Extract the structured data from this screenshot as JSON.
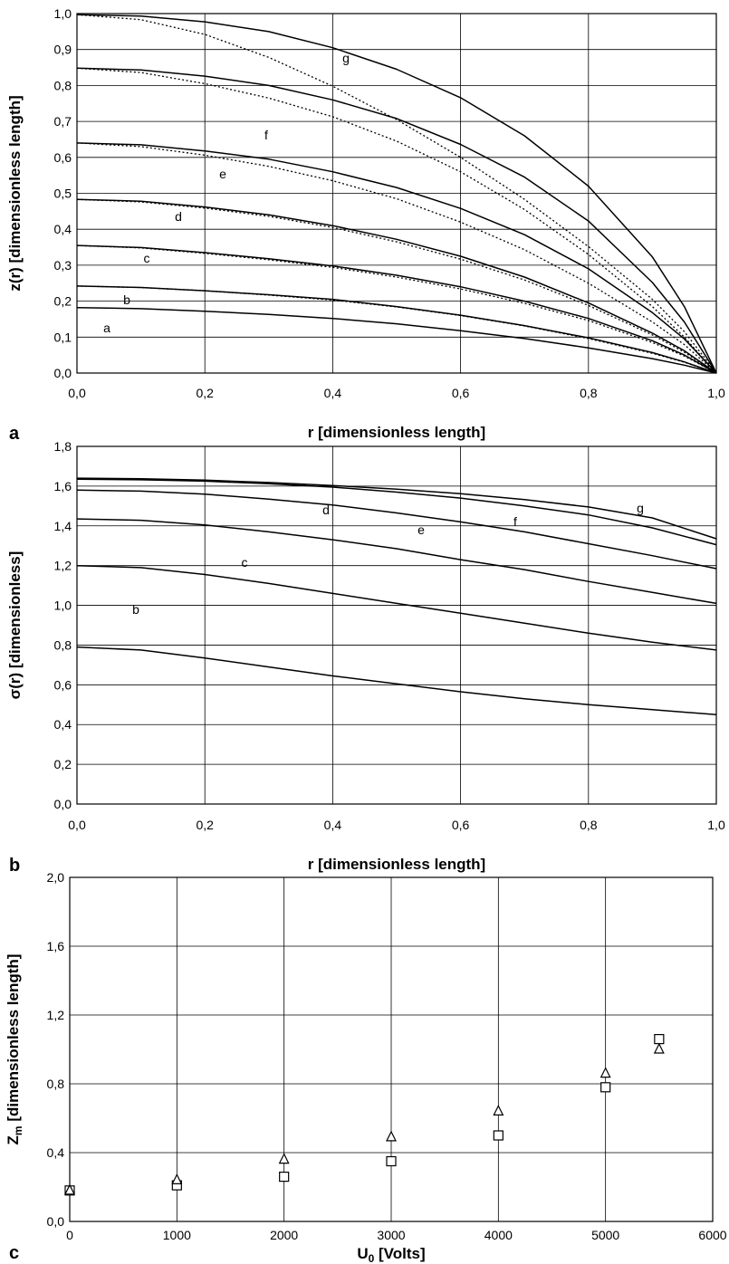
{
  "chart_data": [
    {
      "type": "line",
      "panel": "a",
      "xlabel": "r [dimensionless length]",
      "ylabel": "z(r) [dimensionless length]",
      "xlim": [
        0,
        1
      ],
      "ylim": [
        0,
        1
      ],
      "x_ticks": [
        "0,0",
        "0,2",
        "0,4",
        "0,6",
        "0,8",
        "1,0"
      ],
      "y_ticks": [
        "0,0",
        "0,1",
        "0,2",
        "0,3",
        "0,4",
        "0,5",
        "0,6",
        "0,7",
        "0,8",
        "0,9",
        "1,0"
      ],
      "grid": true,
      "x": [
        0,
        0.1,
        0.2,
        0.3,
        0.4,
        0.5,
        0.6,
        0.7,
        0.8,
        0.9,
        0.95,
        1.0
      ],
      "series": [
        {
          "name": "a",
          "style": "solid",
          "values": [
            0.182,
            0.179,
            0.172,
            0.163,
            0.152,
            0.137,
            0.118,
            0.096,
            0.07,
            0.04,
            0.022,
            0.0
          ]
        },
        {
          "name": "b",
          "style": "solid",
          "values": [
            0.242,
            0.238,
            0.229,
            0.218,
            0.205,
            0.185,
            0.161,
            0.132,
            0.098,
            0.057,
            0.031,
            0.0
          ]
        },
        {
          "name": "b",
          "style": "dotted",
          "values": [
            0.242,
            0.238,
            0.229,
            0.217,
            0.203,
            0.184,
            0.16,
            0.131,
            0.096,
            0.055,
            0.03,
            0.0
          ]
        },
        {
          "name": "c",
          "style": "solid",
          "values": [
            0.355,
            0.349,
            0.335,
            0.318,
            0.298,
            0.272,
            0.24,
            0.2,
            0.152,
            0.09,
            0.05,
            0.0
          ]
        },
        {
          "name": "c",
          "style": "dotted",
          "values": [
            0.355,
            0.348,
            0.333,
            0.315,
            0.294,
            0.267,
            0.234,
            0.194,
            0.146,
            0.085,
            0.047,
            0.0
          ]
        },
        {
          "name": "d",
          "style": "solid",
          "values": [
            0.483,
            0.478,
            0.462,
            0.44,
            0.41,
            0.372,
            0.325,
            0.267,
            0.195,
            0.111,
            0.062,
            0.0
          ]
        },
        {
          "name": "d",
          "style": "dotted",
          "values": [
            0.483,
            0.476,
            0.459,
            0.436,
            0.405,
            0.365,
            0.317,
            0.259,
            0.188,
            0.106,
            0.058,
            0.0
          ]
        },
        {
          "name": "e",
          "style": "solid",
          "values": [
            0.64,
            0.635,
            0.618,
            0.595,
            0.56,
            0.516,
            0.458,
            0.385,
            0.29,
            0.168,
            0.095,
            0.0
          ]
        },
        {
          "name": "e",
          "style": "dotted",
          "values": [
            0.64,
            0.63,
            0.606,
            0.575,
            0.535,
            0.485,
            0.42,
            0.343,
            0.25,
            0.142,
            0.079,
            0.0
          ]
        },
        {
          "name": "f",
          "style": "solid",
          "values": [
            0.848,
            0.843,
            0.826,
            0.8,
            0.76,
            0.708,
            0.636,
            0.545,
            0.423,
            0.252,
            0.142,
            0.0
          ]
        },
        {
          "name": "f",
          "style": "dotted",
          "values": [
            0.848,
            0.836,
            0.805,
            0.765,
            0.713,
            0.645,
            0.56,
            0.455,
            0.33,
            0.185,
            0.1,
            0.0
          ]
        },
        {
          "name": "g",
          "style": "solid",
          "values": [
            0.997,
            0.993,
            0.977,
            0.95,
            0.905,
            0.845,
            0.766,
            0.66,
            0.52,
            0.323,
            0.185,
            0.0
          ]
        },
        {
          "name": "g",
          "style": "dotted",
          "values": [
            0.997,
            0.983,
            0.942,
            0.878,
            0.798,
            0.705,
            0.6,
            0.483,
            0.352,
            0.205,
            0.115,
            0.0
          ]
        }
      ]
    },
    {
      "type": "line",
      "panel": "b",
      "xlabel": "r [dimensionless length]",
      "ylabel": "σ(r) [dimensionless]",
      "xlim": [
        0,
        1
      ],
      "ylim": [
        0,
        1.8
      ],
      "x_ticks": [
        "0,0",
        "0,2",
        "0,4",
        "0,6",
        "0,8",
        "1,0"
      ],
      "y_ticks": [
        "0,0",
        "0,2",
        "0,4",
        "0,6",
        "0,8",
        "1,0",
        "1,2",
        "1,4",
        "1,6",
        "1,8"
      ],
      "grid": true,
      "x": [
        0,
        0.1,
        0.2,
        0.3,
        0.4,
        0.5,
        0.6,
        0.7,
        0.8,
        0.9,
        1.0
      ],
      "series": [
        {
          "name": "b",
          "values": [
            0.79,
            0.775,
            0.735,
            0.69,
            0.645,
            0.605,
            0.565,
            0.53,
            0.5,
            0.475,
            0.45
          ]
        },
        {
          "name": "c",
          "values": [
            1.2,
            1.19,
            1.155,
            1.11,
            1.06,
            1.01,
            0.96,
            0.91,
            0.86,
            0.815,
            0.775
          ]
        },
        {
          "name": "d",
          "values": [
            1.435,
            1.428,
            1.405,
            1.37,
            1.33,
            1.285,
            1.23,
            1.18,
            1.12,
            1.065,
            1.01
          ]
        },
        {
          "name": "e",
          "values": [
            1.58,
            1.575,
            1.56,
            1.535,
            1.505,
            1.465,
            1.42,
            1.37,
            1.31,
            1.25,
            1.185
          ]
        },
        {
          "name": "f",
          "values": [
            1.635,
            1.632,
            1.625,
            1.612,
            1.595,
            1.57,
            1.54,
            1.5,
            1.455,
            1.39,
            1.305
          ]
        },
        {
          "name": "g",
          "values": [
            1.64,
            1.637,
            1.63,
            1.618,
            1.603,
            1.585,
            1.562,
            1.532,
            1.495,
            1.44,
            1.335
          ]
        }
      ]
    },
    {
      "type": "scatter",
      "panel": "c",
      "xlabel": "U0 [Volts]",
      "ylabel": "Zm [dimensionless length]",
      "xlim": [
        0,
        6000
      ],
      "ylim": [
        0,
        2.0
      ],
      "x_ticks": [
        "0",
        "1000",
        "2000",
        "3000",
        "4000",
        "5000",
        "6000"
      ],
      "y_ticks": [
        "0,0",
        "0,4",
        "0,8",
        "1,2",
        "1,6",
        "2,0"
      ],
      "grid": true,
      "series": [
        {
          "marker": "square",
          "x": [
            0,
            1000,
            2000,
            3000,
            4000,
            5000,
            5500
          ],
          "y": [
            0.18,
            0.21,
            0.26,
            0.35,
            0.5,
            0.78,
            1.06
          ]
        },
        {
          "marker": "triangle",
          "x": [
            0,
            1000,
            2000,
            3000,
            4000,
            5000,
            5500
          ],
          "y": [
            0.18,
            0.24,
            0.36,
            0.49,
            0.64,
            0.86,
            1.0
          ]
        }
      ]
    }
  ],
  "panel_letters": [
    "a",
    "b",
    "c"
  ]
}
